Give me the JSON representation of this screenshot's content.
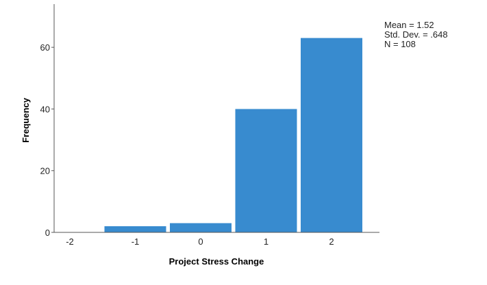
{
  "chart_data": {
    "type": "bar",
    "categories": [
      "-2",
      "-1",
      "0",
      "1",
      "2"
    ],
    "values": [
      0,
      2,
      3,
      40,
      63
    ],
    "xlabel": "Project Stress Change",
    "ylabel": "Frequency",
    "ylim": [
      0,
      74
    ],
    "yticks": [
      0,
      20,
      40,
      60
    ],
    "bar_color": "#388bcf",
    "grid": false,
    "stats_box": {
      "mean": "Mean = 1.52",
      "std": "Std. Dev. = .648",
      "n": "N = 108"
    }
  }
}
